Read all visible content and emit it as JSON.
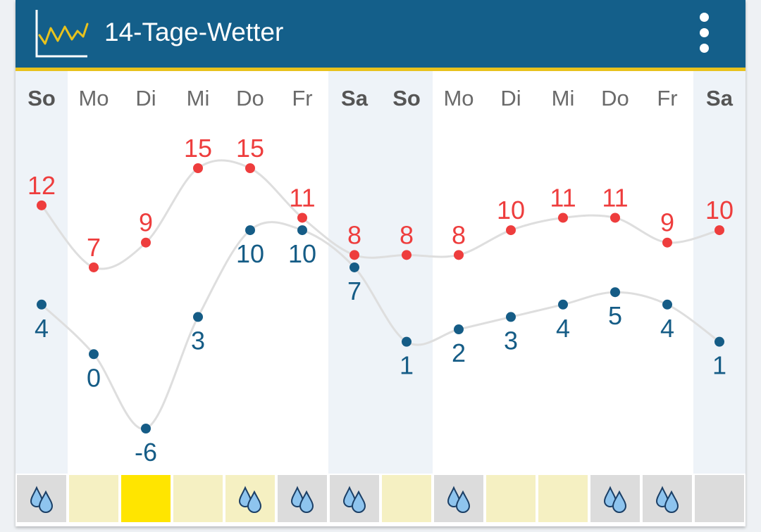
{
  "app": {
    "title": "14-Tage-Wetter",
    "icon": "chart-line-icon",
    "menu_icon": "more-vertical-icon",
    "colors": {
      "header_bg": "#145f8a",
      "header_accent": "#e8c21d",
      "max_temp": "#ee3d3d",
      "min_temp": "#155c86",
      "weekend_bg": "#eef3f8",
      "rain_gray": "#dcdcdc",
      "rain_light_yellow": "#f5f0c2",
      "rain_bright_yellow": "#ffe500",
      "drop": "#8ec4ee"
    }
  },
  "days": [
    {
      "label": "So",
      "weekend": true,
      "max": "12",
      "min": "4",
      "rain_icon": "raindrops-icon",
      "cell": "gray"
    },
    {
      "label": "Mo",
      "weekend": false,
      "max": "7",
      "min": "0",
      "rain_icon": "",
      "cell": "light-yellow"
    },
    {
      "label": "Di",
      "weekend": false,
      "max": "9",
      "min": "-6",
      "rain_icon": "",
      "cell": "bright-yellow"
    },
    {
      "label": "Mi",
      "weekend": false,
      "max": "15",
      "min": "3",
      "rain_icon": "",
      "cell": "light-yellow"
    },
    {
      "label": "Do",
      "weekend": false,
      "max": "15",
      "min": "10",
      "rain_icon": "raindrops-icon",
      "cell": "light-yellow"
    },
    {
      "label": "Fr",
      "weekend": false,
      "max": "11",
      "min": "10",
      "rain_icon": "raindrops-icon",
      "cell": "gray"
    },
    {
      "label": "Sa",
      "weekend": true,
      "max": "8",
      "min": "7",
      "rain_icon": "raindrops-icon",
      "cell": "gray"
    },
    {
      "label": "So",
      "weekend": true,
      "max": "8",
      "min": "1",
      "rain_icon": "",
      "cell": "light-yellow"
    },
    {
      "label": "Mo",
      "weekend": false,
      "max": "8",
      "min": "2",
      "rain_icon": "raindrops-icon",
      "cell": "gray"
    },
    {
      "label": "Di",
      "weekend": false,
      "max": "10",
      "min": "3",
      "rain_icon": "",
      "cell": "light-yellow"
    },
    {
      "label": "Mi",
      "weekend": false,
      "max": "11",
      "min": "4",
      "rain_icon": "",
      "cell": "light-yellow"
    },
    {
      "label": "Do",
      "weekend": false,
      "max": "11",
      "min": "5",
      "rain_icon": "raindrops-icon",
      "cell": "gray"
    },
    {
      "label": "Fr",
      "weekend": false,
      "max": "9",
      "min": "4",
      "rain_icon": "raindrops-icon",
      "cell": "gray"
    },
    {
      "label": "Sa",
      "weekend": true,
      "max": "10",
      "min": "1",
      "rain_icon": "",
      "cell": "gray"
    }
  ],
  "chart_data": {
    "type": "line",
    "categories": [
      "So",
      "Mo",
      "Di",
      "Mi",
      "Do",
      "Fr",
      "Sa",
      "So",
      "Mo",
      "Di",
      "Mi",
      "Do",
      "Fr",
      "Sa"
    ],
    "series": [
      {
        "values": [
          12,
          7,
          9,
          15,
          15,
          11,
          8,
          8,
          8,
          10,
          11,
          11,
          9,
          10
        ]
      },
      {
        "values": [
          4,
          0,
          -6,
          3,
          10,
          10,
          7,
          1,
          2,
          3,
          4,
          5,
          4,
          1
        ]
      }
    ],
    "ylim": [
      -6,
      15
    ],
    "grid": false,
    "legend": "none"
  }
}
